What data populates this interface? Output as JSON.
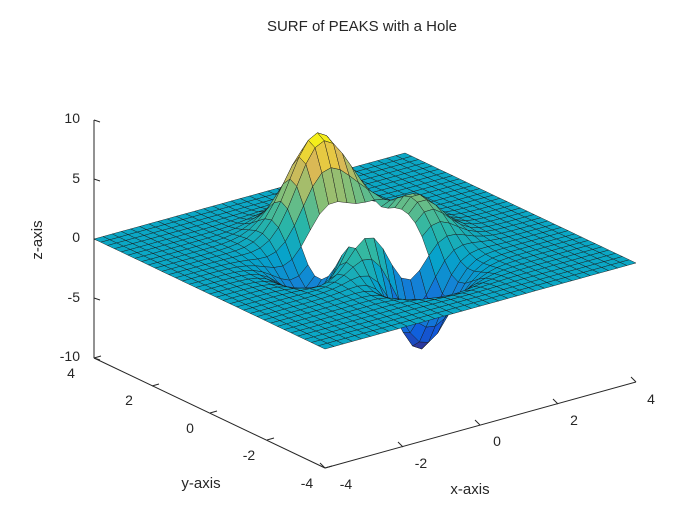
{
  "chart_data": {
    "type": "surface",
    "title": "SURF of PEAKS with a Hole",
    "xlabel": "x-axis",
    "ylabel": "y-axis",
    "zlabel": "z-axis",
    "function": "peaks",
    "grid_points": 35,
    "xlim": [
      -4,
      4
    ],
    "ylim": [
      -4,
      4
    ],
    "zlim": [
      -10,
      10
    ],
    "x_ticks": [
      "-4",
      "-2",
      "0",
      "2",
      "4"
    ],
    "y_ticks": [
      "-4",
      "-2",
      "0",
      "2",
      "4"
    ],
    "z_ticks": [
      "-10",
      "-5",
      "0",
      "5",
      "10"
    ],
    "hole_region": {
      "x": [
        -1,
        1
      ],
      "y": [
        -1,
        1
      ]
    },
    "colormap": "parula",
    "edge_color": "#1a1a1a",
    "grid": false
  }
}
